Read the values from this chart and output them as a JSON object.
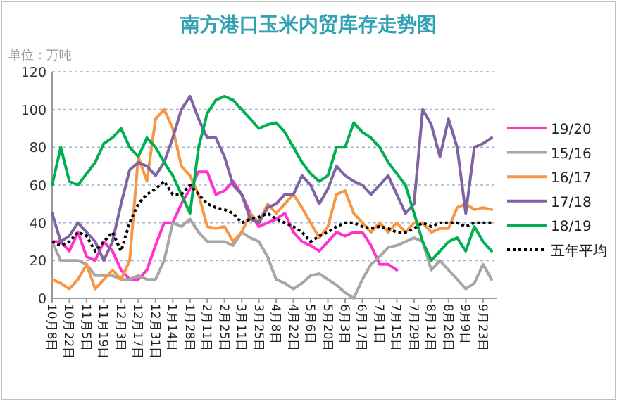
{
  "chart_data": {
    "type": "line",
    "title": "南方港口玉米内贸库存走势图",
    "ylabel": "单位：万吨",
    "categories": [
      "10月8日",
      null,
      "10月22日",
      null,
      "11月5日",
      null,
      "11月19日",
      null,
      "12月3日",
      null,
      "12月17日",
      null,
      "12月31日",
      null,
      "1月14日",
      null,
      "1月28日",
      null,
      "2月11日",
      null,
      "2月25日",
      null,
      "3月11日",
      null,
      "3月25日",
      null,
      "4月8日",
      null,
      "4月22日",
      null,
      "5月6日",
      null,
      "5月20日",
      null,
      "6月3日",
      null,
      "6月17日",
      null,
      "7月1日",
      null,
      "7月15日",
      null,
      "7月29日",
      null,
      "8月12日",
      null,
      "8月26日",
      null,
      "9月9日",
      null,
      "9月23日",
      null
    ],
    "ylim": [
      0,
      120
    ],
    "yticks": [
      0,
      20,
      40,
      60,
      80,
      100,
      120
    ],
    "grid": "y",
    "legend": "right",
    "line_style": "solid",
    "series": [
      {
        "name": "19/20",
        "color": "#ff33cc",
        "values": [
          30,
          30,
          25,
          35,
          22,
          20,
          30,
          25,
          15,
          10,
          10,
          15,
          28,
          40,
          40,
          50,
          58,
          67,
          67,
          55,
          57,
          62,
          55,
          45,
          38,
          40,
          42,
          45,
          35,
          30,
          28,
          25,
          30,
          35,
          33,
          35,
          35,
          28,
          18,
          18,
          15,
          null,
          null,
          null,
          null,
          null,
          null,
          null,
          null,
          null,
          null,
          null
        ]
      },
      {
        "name": "15/16",
        "color": "#a6a6a6",
        "values": [
          30,
          20,
          20,
          20,
          18,
          12,
          12,
          12,
          10,
          10,
          12,
          10,
          10,
          20,
          40,
          38,
          42,
          35,
          30,
          30,
          30,
          28,
          35,
          32,
          30,
          22,
          10,
          8,
          5,
          8,
          12,
          13,
          10,
          7,
          3,
          0,
          10,
          18,
          22,
          27,
          28,
          30,
          32,
          30,
          15,
          20,
          15,
          10,
          5,
          8,
          18,
          10
        ]
      },
      {
        "name": "16/17",
        "color": "#f79646",
        "values": [
          10,
          8,
          5,
          10,
          18,
          5,
          10,
          15,
          10,
          20,
          75,
          62,
          95,
          100,
          90,
          70,
          65,
          55,
          38,
          37,
          38,
          30,
          35,
          45,
          40,
          50,
          45,
          50,
          55,
          48,
          40,
          32,
          38,
          55,
          57,
          45,
          40,
          35,
          40,
          35,
          40,
          35,
          40,
          40,
          35,
          37,
          37,
          48,
          50,
          47,
          48,
          47
        ]
      },
      {
        "name": "17/18",
        "color": "#8064a2",
        "values": [
          45,
          30,
          33,
          40,
          35,
          30,
          20,
          30,
          50,
          68,
          72,
          70,
          65,
          72,
          85,
          100,
          107,
          95,
          85,
          85,
          75,
          60,
          55,
          42,
          40,
          48,
          50,
          55,
          55,
          65,
          60,
          50,
          58,
          70,
          65,
          62,
          60,
          55,
          60,
          65,
          55,
          45,
          50,
          100,
          92,
          75,
          95,
          80,
          45,
          80,
          82,
          85
        ]
      },
      {
        "name": "18/19",
        "color": "#00b050",
        "values": [
          60,
          80,
          62,
          60,
          66,
          72,
          82,
          85,
          90,
          80,
          75,
          85,
          80,
          72,
          65,
          55,
          45,
          80,
          98,
          105,
          107,
          105,
          100,
          95,
          90,
          92,
          93,
          88,
          80,
          72,
          66,
          62,
          65,
          80,
          80,
          93,
          88,
          85,
          80,
          72,
          66,
          60,
          45,
          30,
          20,
          25,
          30,
          32,
          25,
          38,
          30,
          25
        ]
      },
      {
        "name": "五年平均",
        "color": "#000000",
        "line_style": "dotted",
        "values": [
          30,
          28,
          30,
          35,
          33,
          25,
          30,
          35,
          25,
          40,
          50,
          55,
          58,
          62,
          55,
          55,
          60,
          55,
          50,
          48,
          47,
          45,
          40,
          42,
          43,
          45,
          42,
          40,
          38,
          35,
          30,
          33,
          35,
          38,
          40,
          40,
          38,
          37,
          38,
          37,
          35,
          35,
          37,
          40,
          38,
          40,
          40,
          40,
          38,
          40,
          40,
          40
        ]
      }
    ]
  }
}
